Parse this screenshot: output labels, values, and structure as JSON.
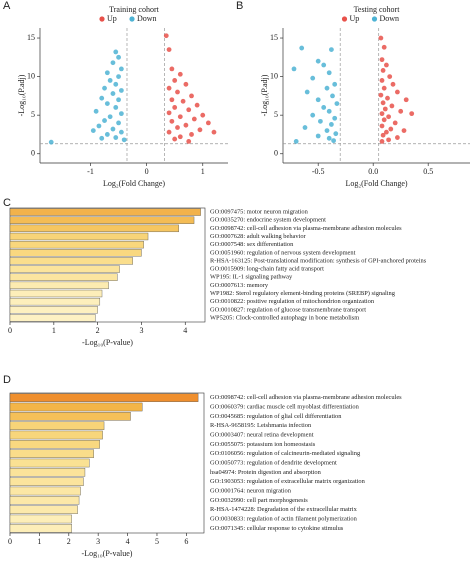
{
  "chart_data": [
    {
      "type": "scatter",
      "panel_label": "A",
      "title": "Training cohort",
      "x_label": "Log₂(Fold Change)",
      "y_label": "-Log₁₀(P.adj)",
      "xlim": [
        -1.9,
        1.45
      ],
      "ylim": [
        -1.2,
        16.3
      ],
      "xticks": [
        -1,
        0,
        1
      ],
      "yticks": [
        0,
        5,
        10,
        15
      ],
      "thresholds": {
        "x": [
          -0.35,
          0.32
        ],
        "y": 1.3
      },
      "series": [
        {
          "name": "Up",
          "color": "#e8514a",
          "x": [
            0.35,
            0.4,
            0.45,
            0.6,
            0.5,
            0.7,
            0.4,
            0.55,
            0.8,
            0.45,
            0.65,
            0.9,
            0.5,
            0.75,
            0.4,
            1.0,
            0.6,
            0.85,
            0.45,
            1.1,
            0.7,
            0.55,
            0.95,
            0.4,
            0.8,
            0.6,
            1.2,
            0.5,
            0.75
          ],
          "values": [
            15.3,
            13.5,
            11,
            10.3,
            9.5,
            9,
            8.5,
            8,
            7.5,
            7,
            6.8,
            6.3,
            6,
            5.7,
            5.3,
            5,
            4.8,
            4.5,
            4.2,
            4,
            3.7,
            3.4,
            3.1,
            2.8,
            2.5,
            2.2,
            2.8,
            1.9,
            1.6
          ]
        },
        {
          "name": "Down",
          "color": "#4db3d4",
          "x": [
            -0.55,
            -0.5,
            -0.6,
            -0.45,
            -0.7,
            -0.5,
            -0.65,
            -0.55,
            -0.75,
            -0.45,
            -0.6,
            -0.8,
            -0.5,
            -0.7,
            -0.55,
            -0.9,
            -0.45,
            -0.65,
            -0.75,
            -0.5,
            -0.85,
            -0.6,
            -0.45,
            -0.7,
            -0.55,
            -1.7,
            -0.4,
            -0.8,
            -0.95
          ],
          "values": [
            13.2,
            12.5,
            11.8,
            11,
            10.5,
            10,
            9.5,
            9,
            8.5,
            8.2,
            7.8,
            7.2,
            7,
            6.5,
            6,
            5.5,
            5.2,
            4.8,
            4.3,
            4,
            3.6,
            3.2,
            2.8,
            2.5,
            2.1,
            1.5,
            1.8,
            2,
            3
          ]
        }
      ]
    },
    {
      "type": "scatter",
      "panel_label": "B",
      "title": "Testing cohort",
      "x_label": "Log₂(Fold Change)",
      "y_label": "-Log₁₀(P.adj)",
      "xlim": [
        -0.82,
        0.88
      ],
      "ylim": [
        -1.2,
        16.3
      ],
      "xticks": [
        {
          "value": -0.5,
          "label": "-0.5"
        },
        {
          "value": 0,
          "label": "0.0"
        },
        {
          "value": 0.5,
          "label": "0.5"
        }
      ],
      "yticks": [
        0,
        5,
        10,
        15
      ],
      "thresholds": {
        "x": [
          -0.3,
          0.05
        ],
        "y": 1.3
      },
      "series": [
        {
          "name": "Up",
          "color": "#e8514a",
          "x": [
            0.07,
            0.1,
            0.08,
            0.12,
            0.09,
            0.15,
            0.08,
            0.18,
            0.1,
            0.22,
            0.07,
            0.13,
            0.3,
            0.09,
            0.17,
            0.11,
            0.25,
            0.08,
            0.14,
            0.35,
            0.1,
            0.2,
            0.08,
            0.16,
            0.28,
            0.12,
            0.09,
            0.22,
            0.14,
            0.08
          ],
          "values": [
            15,
            13.8,
            12.2,
            11.5,
            10.8,
            10,
            9.5,
            9,
            8.5,
            8,
            7.6,
            7.2,
            7,
            6.6,
            6.2,
            5.8,
            5.5,
            5.2,
            4.8,
            5.2,
            4.4,
            4,
            3.6,
            3.2,
            3,
            2.8,
            2.4,
            2.1,
            1.8,
            1.6
          ]
        },
        {
          "name": "Down",
          "color": "#4db3d4",
          "x": [
            -0.65,
            -0.72,
            -0.5,
            -0.38,
            -0.45,
            -0.4,
            -0.55,
            -0.35,
            -0.42,
            -0.6,
            -0.37,
            -0.5,
            -0.33,
            -0.45,
            -0.4,
            -0.55,
            -0.35,
            -0.48,
            -0.38,
            -0.62,
            -0.42,
            -0.34,
            -0.5,
            -0.4,
            -0.7,
            -0.36
          ],
          "values": [
            13.7,
            11,
            12,
            13.5,
            11.5,
            10.5,
            9.8,
            9,
            8.5,
            8,
            7.5,
            7,
            6.5,
            6,
            5.5,
            5,
            4.6,
            4.2,
            3.8,
            3.4,
            3,
            2.6,
            2.3,
            2,
            1.6,
            1.7
          ]
        }
      ]
    },
    {
      "type": "barh",
      "panel_label": "C",
      "x_label": "-Log₁₀(P-value)",
      "xlim": [
        0,
        4.45
      ],
      "xticks": [
        0,
        1,
        2,
        3,
        4
      ],
      "categories": [
        "GO:0097475: motor neuron migration",
        "GO:0035270: endocrine system development",
        "GO:0098742: cell-cell adhesion via plasma-membrane adhesion molecules",
        "GO:0007628: adult walking behavior",
        "GO:0007548: sex differentiation",
        "GO:0051960: regulation of nervous system development",
        "R-HSA-163125: Post-translational modification: synthesis of GPI-anchored proteins",
        "GO:0015909: long-chain fatty acid transport",
        "WP195: IL-1 signaling pathway",
        "GO:0007613: memory",
        "WP1982: Sterol regulatory element-binding proteins (SREBP) signaling",
        "GO:0010822: positive regulation of mitochondrion organization",
        "GO:0010827: regulation of glucose transmembrane transport",
        "WP5205: Clock-controlled autophagy in bone metabolism"
      ],
      "values": [
        4.35,
        4.2,
        3.85,
        3.15,
        3.05,
        3.0,
        2.8,
        2.5,
        2.45,
        2.25,
        2.1,
        2.05,
        2.0,
        1.95
      ],
      "colors": [
        "#f2b24b",
        "#f4bc55",
        "#f6c661",
        "#f8d478",
        "#f9d77d",
        "#f9d880",
        "#fade8d",
        "#fbe49c",
        "#fbe5a0",
        "#fcebb0",
        "#fdeeb9",
        "#fdefbc",
        "#fdf0c0",
        "#fdf1c3"
      ]
    },
    {
      "type": "barh",
      "panel_label": "D",
      "x_label": "-Log₁₀(P-value)",
      "xlim": [
        0,
        6.6
      ],
      "xticks": [
        0,
        1,
        2,
        3,
        4,
        5,
        6
      ],
      "categories": [
        "GO:0098742: cell-cell adhesion via plasma-membrane adhesion molecules",
        "GO:0060379: cardiac muscle cell myoblast differentiation",
        "GO:0045685: regulation of glial cell differentiation",
        "R-HSA-9658195: Leishmania infection",
        "GO:0003407: neural retina development",
        "GO:0055075: potassium ion homeostasis",
        "GO:0106056: regulation of calcineurin-mediated signaling",
        "GO:0050773: regulation of dendrite development",
        "hsa04974: Protein digestion and absorption",
        "GO:1903053: regulation of extracellular matrix organization",
        "GO:0001764: neuron migration",
        "GO:0032990: cell part morphogenesis",
        "R-HSA-1474228: Degradation of the extracellular matrix",
        "GO:0030833: regulation of actin filament polymerization",
        "GO:0071345: cellular response to cytokine stimulus"
      ],
      "values": [
        6.4,
        4.5,
        4.1,
        3.2,
        3.15,
        3.05,
        2.85,
        2.7,
        2.55,
        2.5,
        2.4,
        2.35,
        2.3,
        2.1,
        2.1
      ],
      "colors": [
        "#ef8f2e",
        "#f3b548",
        "#f5c058",
        "#f8d478",
        "#f8d67b",
        "#f9d880",
        "#fadd8a",
        "#fae193",
        "#fbe39a",
        "#fbe49d",
        "#fce7a5",
        "#fce8a8",
        "#fce9ab",
        "#fdeeb8",
        "#fdeeb8"
      ]
    }
  ]
}
